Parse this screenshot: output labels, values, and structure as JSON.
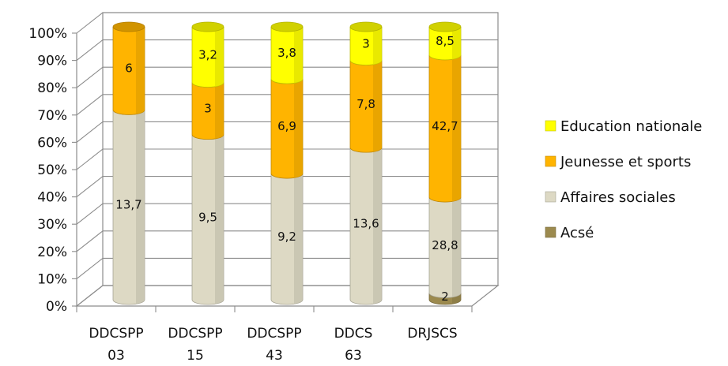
{
  "chart_data": {
    "type": "bar",
    "stacked": true,
    "percent_stacked": true,
    "three_d": true,
    "title": "",
    "xlabel": "",
    "ylabel": "",
    "ylim": [
      0,
      100
    ],
    "y_ticks": [
      "0%",
      "10%",
      "20%",
      "30%",
      "40%",
      "50%",
      "60%",
      "70%",
      "80%",
      "90%",
      "100%"
    ],
    "grid": true,
    "legend_position": "right",
    "categories": [
      [
        "DDCSPP",
        "03"
      ],
      [
        "DDCSPP",
        "15"
      ],
      [
        "DDCSPP",
        "43"
      ],
      [
        "DDCS",
        "63"
      ],
      [
        "DRJSCS",
        ""
      ]
    ],
    "series": [
      {
        "name": "Acsé",
        "color": "#9c8a4e",
        "values": [
          0,
          0,
          0,
          0,
          2
        ],
        "labels": [
          "",
          "",
          "",
          "",
          "2"
        ]
      },
      {
        "name": "Affaires sociales",
        "color": "#ddd9c4",
        "values": [
          13.7,
          9.5,
          9.2,
          13.6,
          28.8
        ],
        "labels": [
          "13,7",
          "9,5",
          "9,2",
          "13,6",
          "28,8"
        ]
      },
      {
        "name": "Jeunesse et sports",
        "color": "#ffb400",
        "values": [
          6,
          3,
          6.9,
          7.8,
          42.7
        ],
        "labels": [
          "6",
          "3",
          "6,9",
          "7,8",
          "42,7"
        ]
      },
      {
        "name": "Education nationale",
        "color": "#ffff00",
        "values": [
          0,
          3.2,
          3.8,
          3,
          8.5
        ],
        "labels": [
          "",
          "3,2",
          "3,8",
          "3",
          "8,5"
        ]
      }
    ],
    "legend_order": [
      "Education nationale",
      "Jeunesse et sports",
      "Affaires sociales",
      "Acsé"
    ]
  }
}
